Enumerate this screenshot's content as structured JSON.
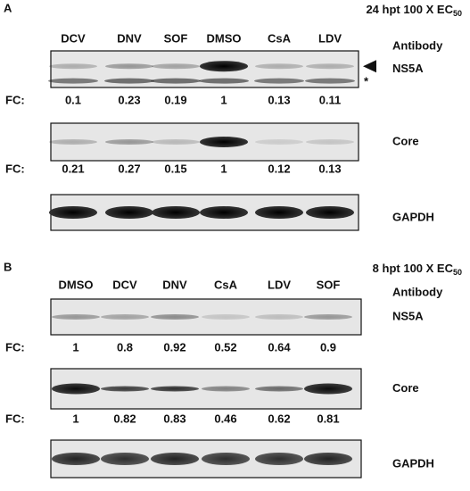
{
  "panels": [
    {
      "label": "A",
      "condition": "24 hpt 100 X EC",
      "condition_subscript": "50",
      "lanes": [
        "DCV",
        "DNV",
        "SOF",
        "DMSO",
        "CsA",
        "LDV"
      ],
      "antibody_header": "Antibody",
      "blots": [
        {
          "name": "NS5A",
          "marker": "*",
          "fc_label": "FC:",
          "fc": [
            0.1,
            0.23,
            0.19,
            1,
            0.13,
            0.11
          ]
        },
        {
          "name": "Core",
          "fc_label": "FC:",
          "fc": [
            0.21,
            0.27,
            0.15,
            1,
            0.12,
            0.13
          ]
        },
        {
          "name": "GAPDH"
        }
      ]
    },
    {
      "label": "B",
      "condition": "8 hpt 100 X EC",
      "condition_subscript": "50",
      "lanes": [
        "DMSO",
        "DCV",
        "DNV",
        "CsA",
        "LDV",
        "SOF"
      ],
      "antibody_header": "Antibody",
      "blots": [
        {
          "name": "NS5A",
          "fc_label": "FC:",
          "fc": [
            1,
            0.8,
            0.92,
            0.52,
            0.64,
            0.9
          ]
        },
        {
          "name": "Core",
          "fc_label": "FC:",
          "fc": [
            1,
            0.82,
            0.83,
            0.46,
            0.62,
            0.81
          ]
        },
        {
          "name": "GAPDH"
        }
      ]
    }
  ]
}
